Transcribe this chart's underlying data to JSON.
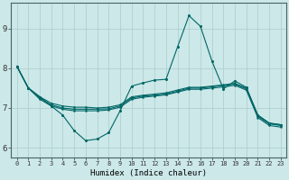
{
  "xlabel": "Humidex (Indice chaleur)",
  "bg_color": "#cce8e8",
  "grid_color": "#aacccc",
  "line_color": "#006666",
  "xlim": [
    -0.5,
    23.5
  ],
  "ylim": [
    5.75,
    9.65
  ],
  "xticks": [
    0,
    1,
    2,
    3,
    4,
    5,
    6,
    7,
    8,
    9,
    10,
    11,
    12,
    13,
    14,
    15,
    16,
    17,
    18,
    19,
    20,
    21,
    22,
    23
  ],
  "yticks": [
    6,
    7,
    8,
    9
  ],
  "line1_x": [
    0,
    1,
    2,
    3,
    4,
    5,
    6,
    7,
    8,
    9,
    10,
    11,
    12,
    13,
    14,
    15,
    16,
    17,
    18,
    19,
    20,
    21,
    22,
    23
  ],
  "line1_y": [
    8.05,
    7.5,
    7.28,
    7.05,
    6.82,
    6.43,
    6.18,
    6.22,
    6.38,
    6.93,
    7.55,
    7.63,
    7.7,
    7.72,
    8.53,
    9.32,
    9.05,
    8.18,
    7.48,
    7.68,
    7.52,
    6.82,
    6.62,
    6.58
  ],
  "line2_x": [
    0,
    1,
    2,
    3,
    4,
    5,
    6,
    7,
    8,
    9,
    10,
    11,
    12,
    13,
    14,
    15,
    16,
    17,
    18,
    19,
    20,
    21,
    22,
    23
  ],
  "line2_y": [
    8.05,
    7.5,
    7.28,
    7.12,
    7.05,
    7.02,
    7.02,
    7.0,
    7.02,
    7.08,
    7.28,
    7.32,
    7.35,
    7.38,
    7.45,
    7.52,
    7.52,
    7.55,
    7.58,
    7.62,
    7.5,
    6.82,
    6.62,
    6.58
  ],
  "line3_x": [
    0,
    1,
    2,
    3,
    4,
    5,
    6,
    7,
    8,
    9,
    10,
    11,
    12,
    13,
    14,
    15,
    16,
    17,
    18,
    19,
    20,
    21,
    22,
    23
  ],
  "line3_y": [
    8.05,
    7.5,
    7.25,
    7.08,
    7.0,
    6.97,
    6.97,
    6.97,
    6.98,
    7.05,
    7.25,
    7.3,
    7.32,
    7.35,
    7.42,
    7.5,
    7.5,
    7.53,
    7.57,
    7.6,
    7.48,
    6.79,
    6.6,
    6.56
  ],
  "line4_x": [
    0,
    1,
    2,
    3,
    4,
    5,
    6,
    7,
    8,
    9,
    10,
    11,
    12,
    13,
    14,
    15,
    16,
    17,
    18,
    19,
    20,
    21,
    22,
    23
  ],
  "line4_y": [
    8.05,
    7.5,
    7.22,
    7.05,
    6.97,
    6.93,
    6.93,
    6.93,
    6.95,
    7.02,
    7.22,
    7.27,
    7.3,
    7.33,
    7.4,
    7.47,
    7.47,
    7.5,
    7.53,
    7.57,
    7.45,
    6.76,
    6.56,
    6.52
  ]
}
